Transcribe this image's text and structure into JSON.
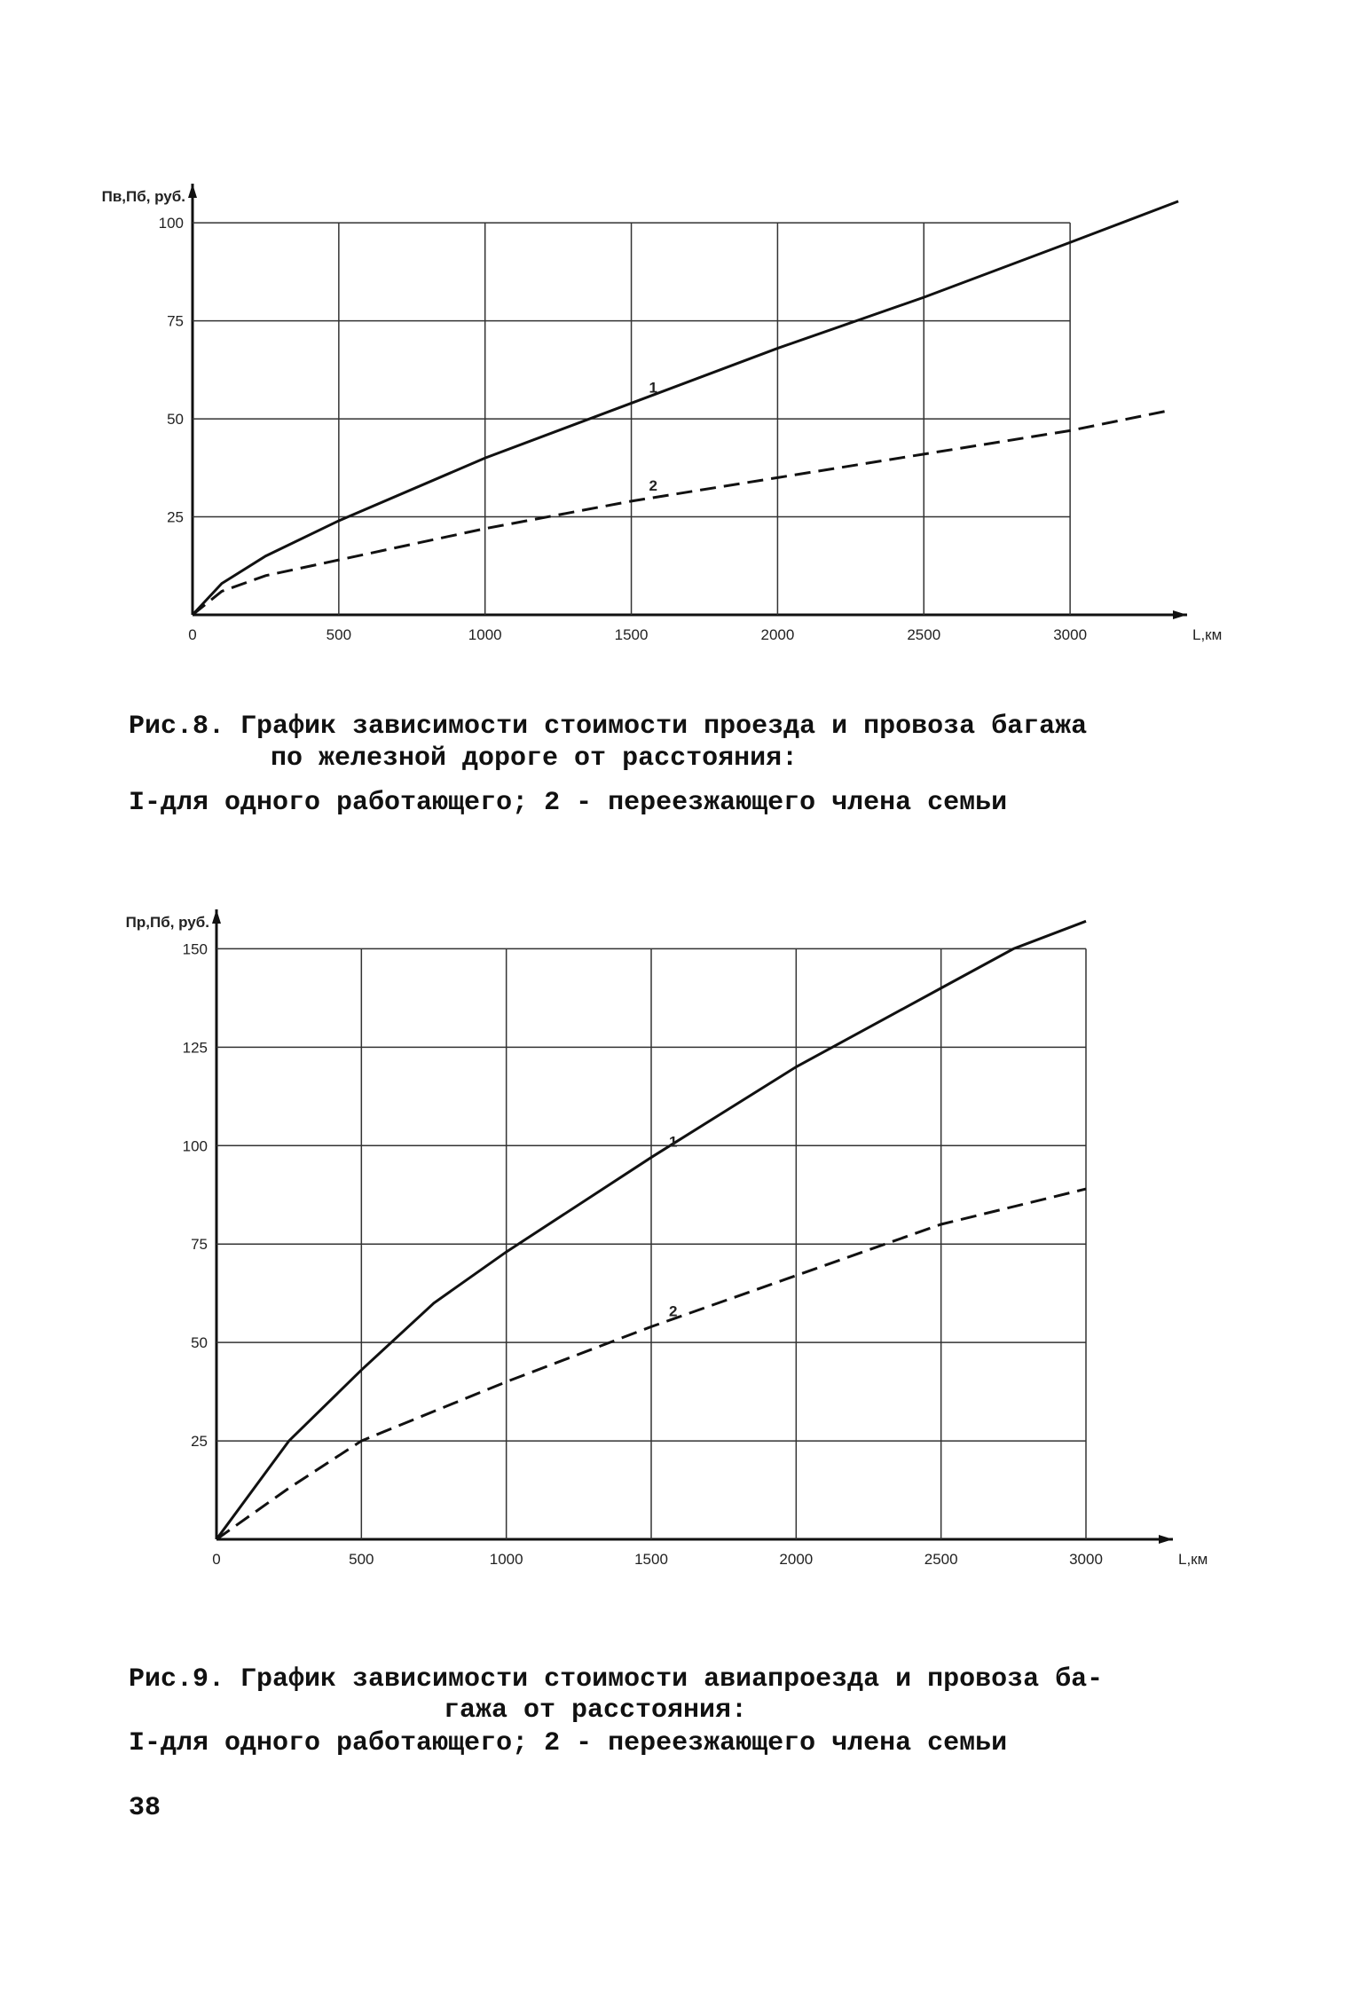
{
  "chart_data": [
    {
      "type": "line",
      "y_label": "Пв,Пб, руб.",
      "x_label": "L,км",
      "xlim": [
        0,
        3400
      ],
      "ylim": [
        0,
        110
      ],
      "xticks": [
        0,
        500,
        1000,
        1500,
        2000,
        2500,
        3000
      ],
      "yticks": [
        25,
        50,
        75,
        100
      ],
      "grid": true,
      "series": [
        {
          "name": "1",
          "color": "#111111",
          "style": "solid",
          "x": [
            0,
            100,
            250,
            500,
            1000,
            1500,
            2000,
            2500,
            3000,
            3370
          ],
          "values": [
            0,
            8,
            15,
            24,
            40,
            54,
            68,
            81,
            95,
            105.5
          ]
        },
        {
          "name": "2",
          "color": "#111111",
          "style": "dashed",
          "x": [
            0,
            100,
            250,
            500,
            1000,
            1500,
            2000,
            2500,
            3000,
            3330
          ],
          "values": [
            0,
            6,
            10,
            14,
            22,
            29,
            35,
            41,
            47,
            52
          ]
        }
      ],
      "caption": [
        "Рис.8. График зависимости стоимости проезда и провоза багажа",
        "по железной дороге от расстояния:",
        "I-для одного работающего; 2 - переезжающего члена семьи"
      ]
    },
    {
      "type": "line",
      "y_label": "Пр,Пб, руб.",
      "x_label": "L,км",
      "xlim": [
        0,
        3300
      ],
      "ylim": [
        0,
        160
      ],
      "xticks": [
        0,
        500,
        1000,
        1500,
        2000,
        2500,
        3000
      ],
      "yticks": [
        25,
        50,
        75,
        100,
        125,
        150
      ],
      "grid": true,
      "series": [
        {
          "name": "1",
          "color": "#111111",
          "style": "solid",
          "x": [
            0,
            250,
            500,
            750,
            1000,
            1500,
            2000,
            2500,
            2750,
            3000
          ],
          "values": [
            0,
            25,
            43,
            60,
            73,
            97,
            120,
            140,
            150,
            157
          ]
        },
        {
          "name": "2",
          "color": "#111111",
          "style": "dashed",
          "x": [
            0,
            250,
            500,
            1000,
            1500,
            2000,
            2500,
            3000
          ],
          "values": [
            0,
            13,
            25,
            40,
            54,
            67,
            80,
            89
          ]
        }
      ],
      "caption": [
        "Рис.9. График зависимости стоимости авиапроезда и провоза ба-",
        "гажа от расстояния:",
        "I-для одного работающего; 2 - переезжающего члена семьи"
      ]
    }
  ],
  "page_number": "38"
}
